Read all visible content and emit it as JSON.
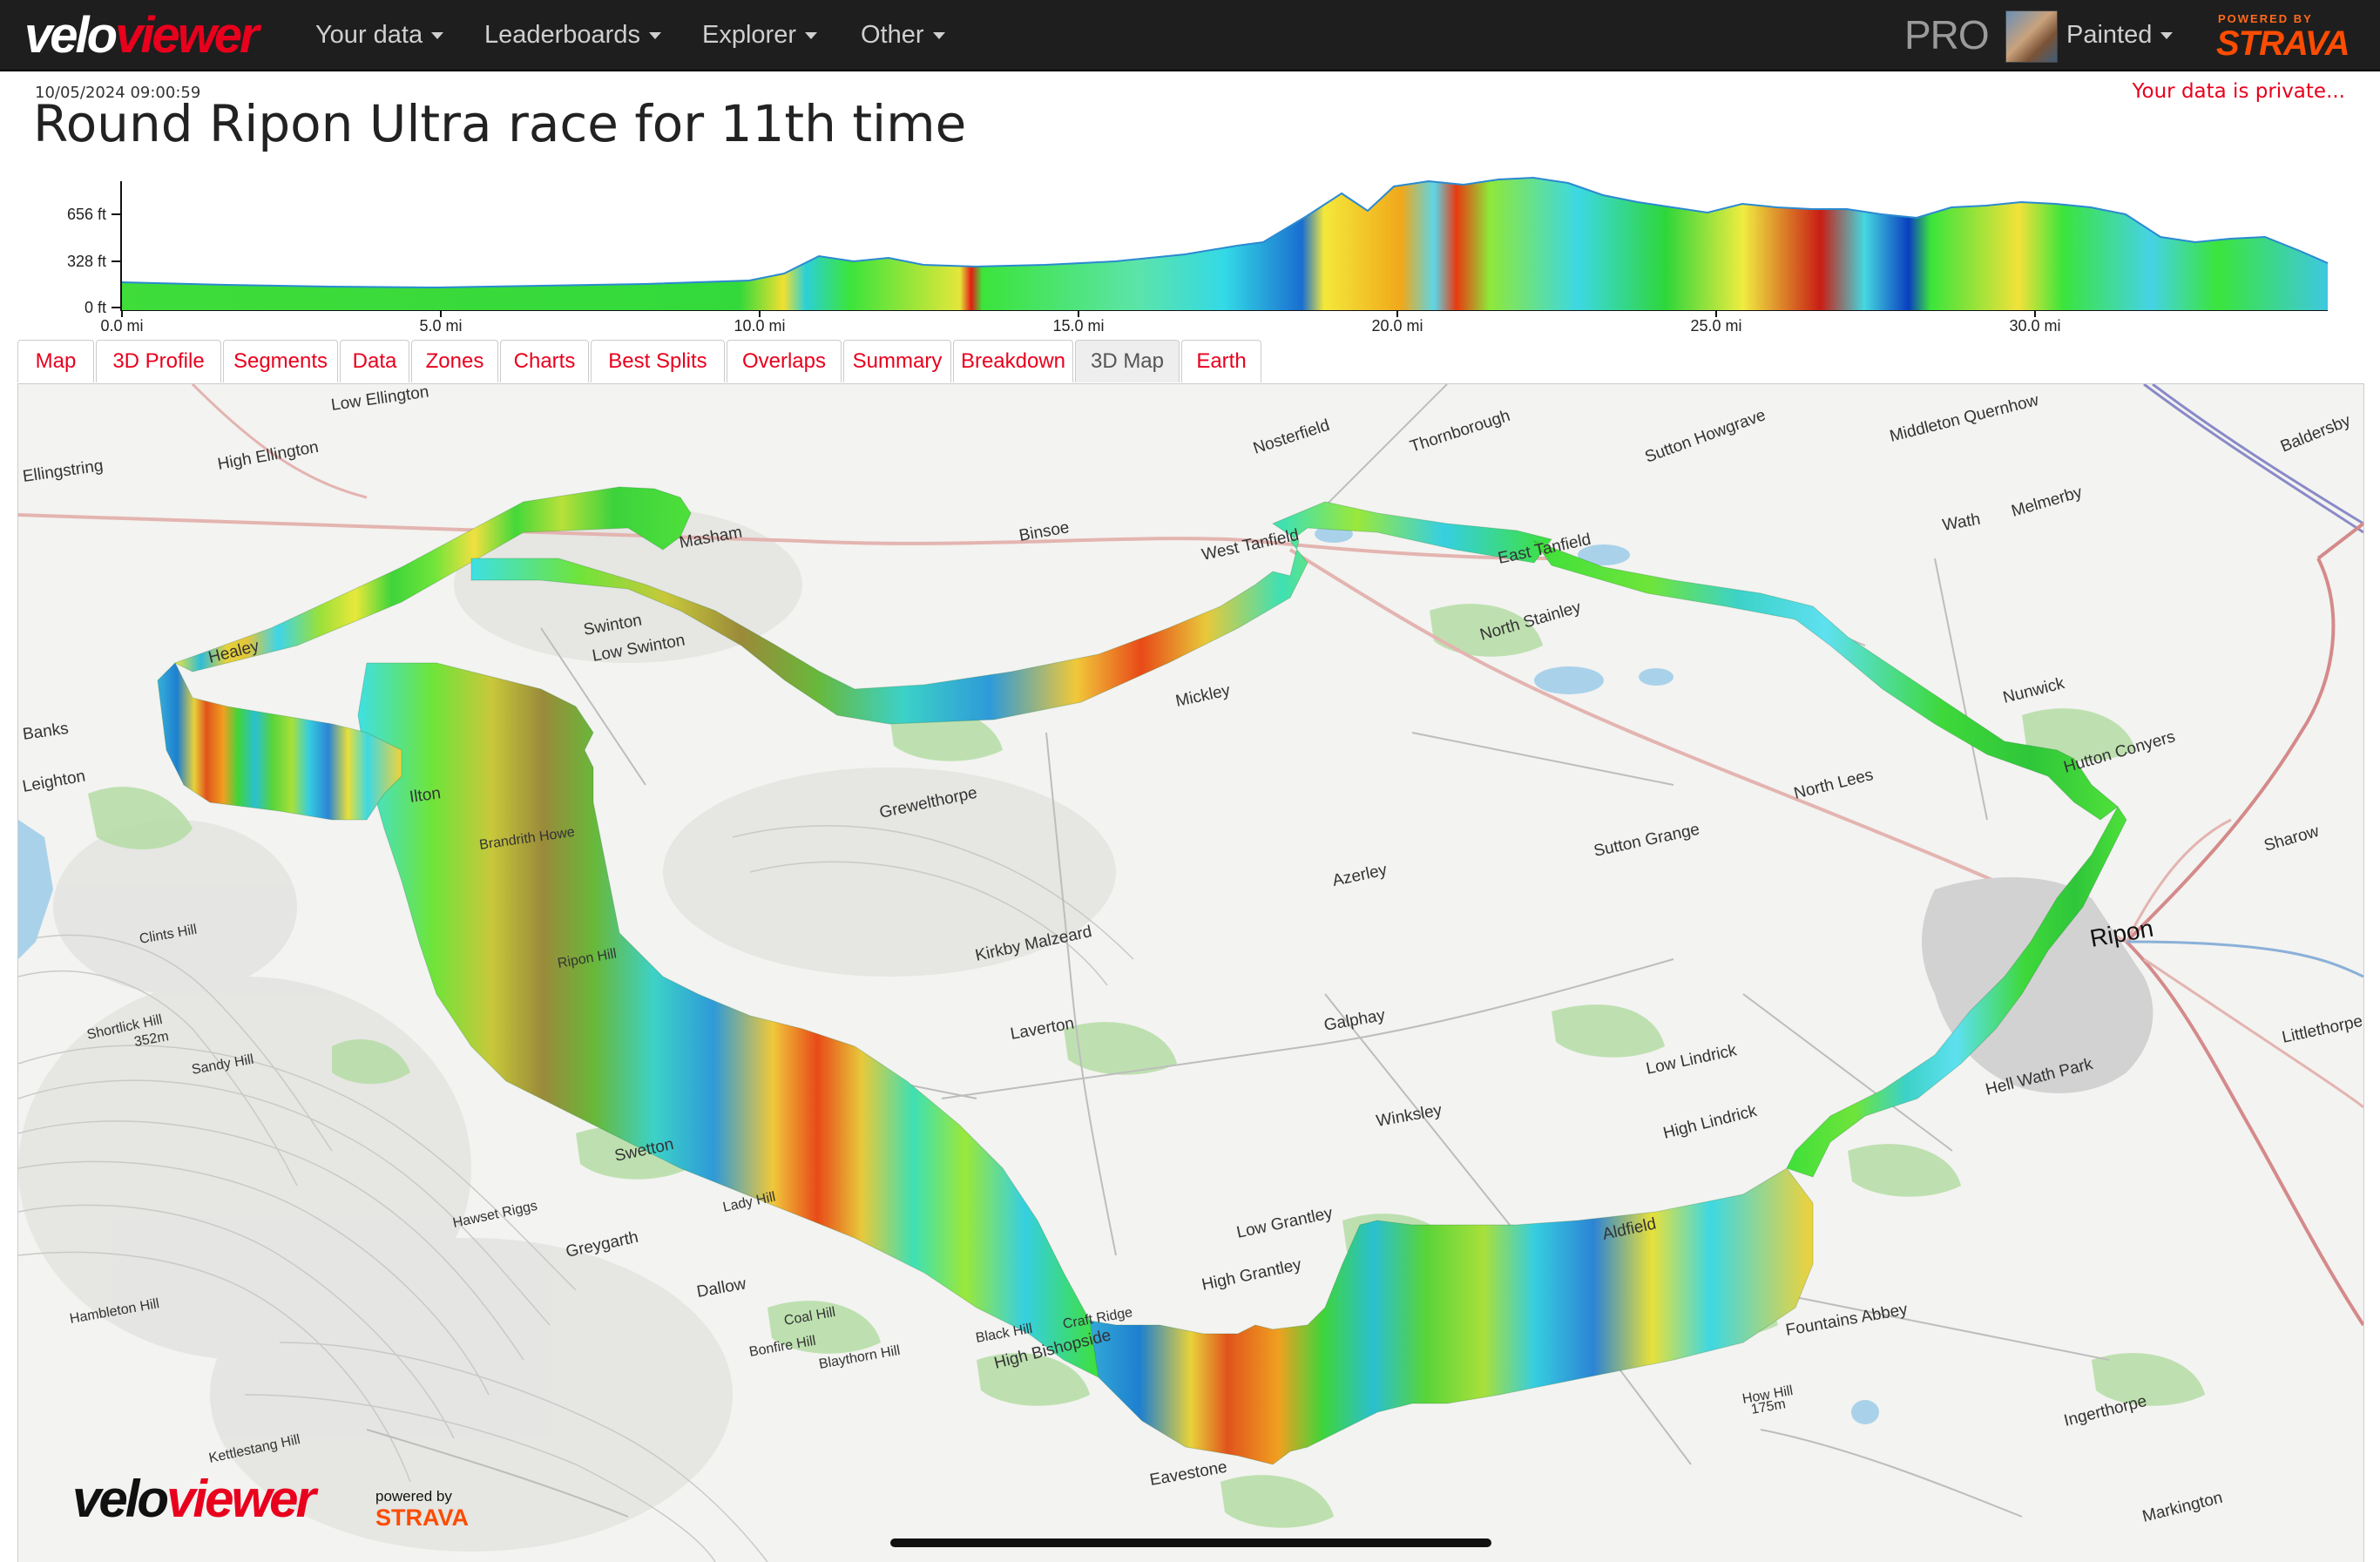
{
  "nav": {
    "logo_part1": "velo",
    "logo_part2": "viewer",
    "items": [
      {
        "label": "Your data"
      },
      {
        "label": "Leaderboards"
      },
      {
        "label": "Explorer"
      },
      {
        "label": "Other"
      }
    ],
    "pro_label": "PRO",
    "user_name": "Painted",
    "powered_by": "POWERED BY",
    "strava": "STRAVA"
  },
  "activity": {
    "timestamp": "10/05/2024 09:00:59",
    "title": "Round Ripon Ultra race for 11th time",
    "privacy_note": "Your data is private..."
  },
  "elevation_profile": {
    "y_ticks": [
      "656 ft",
      "328 ft",
      "0 ft"
    ],
    "x_ticks": [
      "0.0 mi",
      "5.0 mi",
      "10.0 mi",
      "15.0 mi",
      "20.0 mi",
      "25.0 mi",
      "30.0 mi"
    ]
  },
  "tabs": [
    {
      "label": "Map",
      "active": false
    },
    {
      "label": "3D Profile",
      "active": false
    },
    {
      "label": "Segments",
      "active": false
    },
    {
      "label": "Data",
      "active": false
    },
    {
      "label": "Zones",
      "active": false
    },
    {
      "label": "Charts",
      "active": false
    },
    {
      "label": "Best Splits",
      "active": false
    },
    {
      "label": "Overlaps",
      "active": false
    },
    {
      "label": "Summary",
      "active": false
    },
    {
      "label": "Breakdown",
      "active": false
    },
    {
      "label": "3D Map",
      "active": true
    },
    {
      "label": "Earth",
      "active": false
    }
  ],
  "map": {
    "place_labels": [
      "Low Ellington",
      "Ellingstring",
      "High Ellington",
      "Healey",
      "Banks",
      "Leighton",
      "Ilton",
      "Swinton",
      "Low Swinton",
      "Masham",
      "Binsoe",
      "Nosterfield",
      "Thornborough",
      "Sutton Howgrave",
      "Middleton Quernhow",
      "Baldersby",
      "West Tanfield",
      "East Tanfield",
      "Wath",
      "Melmerby",
      "North Stainley",
      "Mickley",
      "Grewelthorpe",
      "Nunwick",
      "Hutton Conyers",
      "North Lees",
      "Sutton Grange",
      "Azerley",
      "Sharow",
      "Ripon",
      "Kirkby Malzeard",
      "Laverton",
      "Galphay",
      "Low Lindrick",
      "High Lindrick",
      "Hell Wath Park",
      "Littlethorpe",
      "Winksley",
      "Clints Hill",
      "Brandrith Howe",
      "Shortlick Hill",
      "Sandy Hill",
      "Swetton",
      "Greygarth",
      "Hawset Riggs",
      "Lady Hill",
      "Dallow",
      "Hambleton Hill",
      "Coal Hill",
      "Bonfire Hill",
      "Blaythorn Hill",
      "Black Hill",
      "Low Grantley",
      "High Grantley",
      "Aldfield",
      "High Bishopside",
      "Eavestone",
      "How Hill",
      "Ingerthorpe",
      "Markington",
      "Kettlestang Hill",
      "Fountains Abbey",
      "Craft Ridge",
      "Ripon Hill"
    ],
    "spot_heights": [
      "352m",
      "175m"
    ],
    "footer_logo_part1": "velo",
    "footer_logo_part2": "viewer",
    "footer_powered_by": "powered by",
    "footer_strava": "STRAVA"
  }
}
